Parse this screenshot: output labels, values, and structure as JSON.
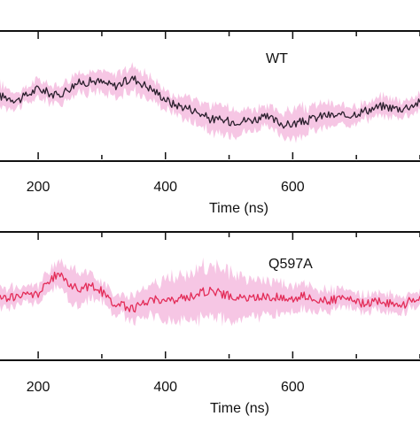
{
  "chart_data": [
    {
      "type": "line",
      "label": "WT",
      "xlabel": "Time (ns)",
      "xlim": [
        140,
        800
      ],
      "ticks": [
        200,
        400,
        600
      ],
      "series": [
        {
          "role": "mean",
          "color": "#2a1f2d",
          "x": [
            140,
            170,
            200,
            230,
            260,
            290,
            320,
            350,
            380,
            410,
            440,
            470,
            500,
            530,
            560,
            590,
            620,
            650,
            680,
            710,
            740,
            770,
            800
          ],
          "y": [
            0.5,
            0.47,
            0.56,
            0.5,
            0.6,
            0.62,
            0.58,
            0.64,
            0.55,
            0.44,
            0.4,
            0.32,
            0.3,
            0.31,
            0.33,
            0.27,
            0.3,
            0.35,
            0.34,
            0.38,
            0.42,
            0.4,
            0.45
          ]
        },
        {
          "role": "spread",
          "color": "#f6c6e4",
          "x": [
            140,
            170,
            200,
            230,
            260,
            290,
            320,
            350,
            380,
            410,
            440,
            470,
            500,
            530,
            560,
            590,
            620,
            650,
            680,
            710,
            740,
            770,
            800
          ],
          "y": [
            0.2,
            0.12,
            0.16,
            0.14,
            0.16,
            0.18,
            0.2,
            0.22,
            0.18,
            0.16,
            0.2,
            0.22,
            0.24,
            0.2,
            0.18,
            0.22,
            0.24,
            0.2,
            0.16,
            0.14,
            0.16,
            0.14,
            0.12
          ]
        }
      ]
    },
    {
      "type": "line",
      "label": "Q597A",
      "xlabel": "Time (ns)",
      "xlim": [
        140,
        800
      ],
      "ticks": [
        200,
        400,
        600
      ],
      "series": [
        {
          "role": "mean",
          "color": "#e32c58",
          "x": [
            140,
            170,
            200,
            230,
            260,
            290,
            320,
            350,
            380,
            410,
            440,
            470,
            500,
            530,
            560,
            590,
            620,
            650,
            680,
            710,
            740,
            770,
            800
          ],
          "y": [
            0.48,
            0.5,
            0.52,
            0.68,
            0.56,
            0.58,
            0.44,
            0.4,
            0.48,
            0.46,
            0.5,
            0.55,
            0.5,
            0.48,
            0.5,
            0.48,
            0.5,
            0.46,
            0.48,
            0.44,
            0.46,
            0.42,
            0.5
          ]
        },
        {
          "role": "spread",
          "color": "#f6c6e4",
          "x": [
            140,
            170,
            200,
            230,
            260,
            290,
            320,
            350,
            380,
            410,
            440,
            470,
            500,
            530,
            560,
            590,
            620,
            650,
            680,
            710,
            740,
            770,
            800
          ],
          "y": [
            0.2,
            0.14,
            0.16,
            0.22,
            0.3,
            0.2,
            0.16,
            0.2,
            0.26,
            0.4,
            0.44,
            0.46,
            0.42,
            0.34,
            0.3,
            0.26,
            0.22,
            0.18,
            0.16,
            0.14,
            0.16,
            0.14,
            0.12
          ]
        }
      ]
    }
  ]
}
